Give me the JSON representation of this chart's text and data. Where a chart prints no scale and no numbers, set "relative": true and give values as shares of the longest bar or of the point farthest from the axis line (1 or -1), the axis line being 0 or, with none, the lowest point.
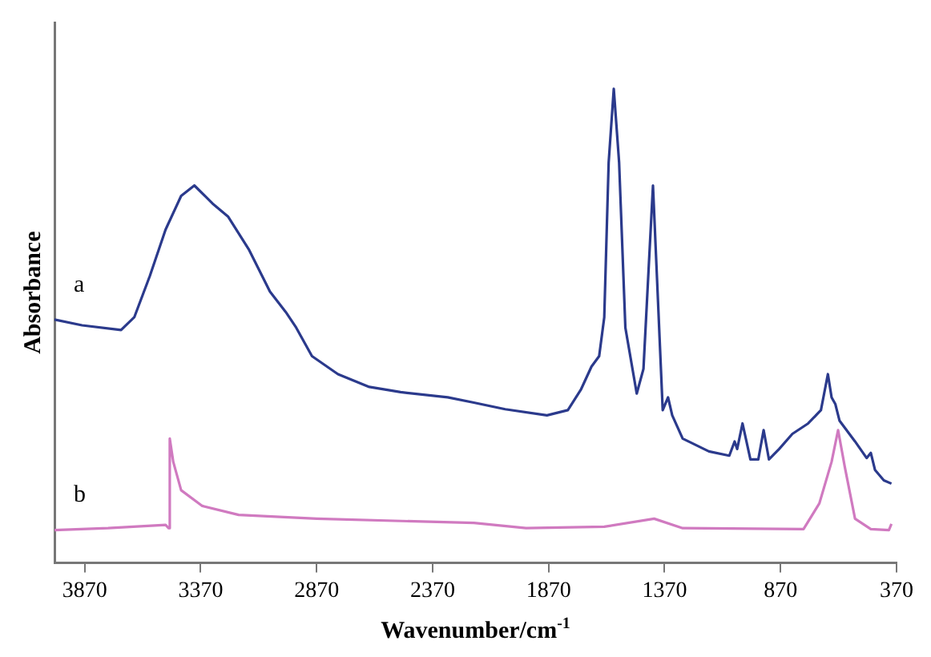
{
  "chart_data": {
    "type": "line",
    "xlabel": "Wavenumber/cm$^{-1}$",
    "ylabel": "Absorbance",
    "relative": true,
    "xlim": [
      4000,
      370
    ],
    "xticks": [
      3870,
      3370,
      2870,
      2370,
      1870,
      1370,
      870,
      370
    ],
    "grid": false,
    "legend": false,
    "marker": "none",
    "line_style": "solid",
    "series": [
      {
        "name": "a",
        "color": "#2b3a8c",
        "x": [
          4000,
          3881,
          3713,
          3656,
          3589,
          3521,
          3454,
          3397,
          3319,
          3251,
          3161,
          3071,
          3003,
          2958,
          2890,
          2778,
          2643,
          2508,
          2305,
          2192,
          2057,
          1877,
          1787,
          1731,
          1685,
          1652,
          1630,
          1611,
          1589,
          1566,
          1539,
          1490,
          1461,
          1438,
          1420,
          1405,
          1378,
          1355,
          1337,
          1292,
          1179,
          1091,
          1068,
          1057,
          1034,
          1000,
          966,
          943,
          920,
          876,
          819,
          751,
          696,
          679,
          666,
          650,
          634,
          616,
          549,
          499,
          481,
          463,
          425,
          392
        ],
        "values": [
          0.513,
          0.501,
          0.491,
          0.518,
          0.605,
          0.703,
          0.774,
          0.796,
          0.758,
          0.73,
          0.66,
          0.572,
          0.529,
          0.496,
          0.436,
          0.398,
          0.371,
          0.36,
          0.349,
          0.338,
          0.324,
          0.311,
          0.322,
          0.365,
          0.414,
          0.436,
          0.518,
          0.845,
          1.0,
          0.845,
          0.496,
          0.357,
          0.409,
          0.627,
          0.796,
          0.627,
          0.322,
          0.349,
          0.311,
          0.262,
          0.235,
          0.226,
          0.256,
          0.24,
          0.294,
          0.218,
          0.218,
          0.28,
          0.218,
          0.24,
          0.272,
          0.294,
          0.322,
          0.365,
          0.398,
          0.349,
          0.335,
          0.3,
          0.256,
          0.221,
          0.232,
          0.196,
          0.174,
          0.167
        ]
      },
      {
        "name": "b",
        "color": "#d07ac0",
        "x": [
          4000,
          3769,
          3521,
          3508,
          3503,
          3488,
          3454,
          3363,
          3206,
          2869,
          2192,
          1967,
          1630,
          1415,
          1292,
          771,
          703,
          650,
          622,
          593,
          549,
          481,
          403,
          392
        ],
        "values": [
          0.069,
          0.073,
          0.08,
          0.073,
          0.262,
          0.213,
          0.153,
          0.12,
          0.101,
          0.093,
          0.084,
          0.073,
          0.076,
          0.093,
          0.073,
          0.071,
          0.125,
          0.213,
          0.28,
          0.202,
          0.093,
          0.071,
          0.069,
          0.082
        ]
      }
    ]
  }
}
